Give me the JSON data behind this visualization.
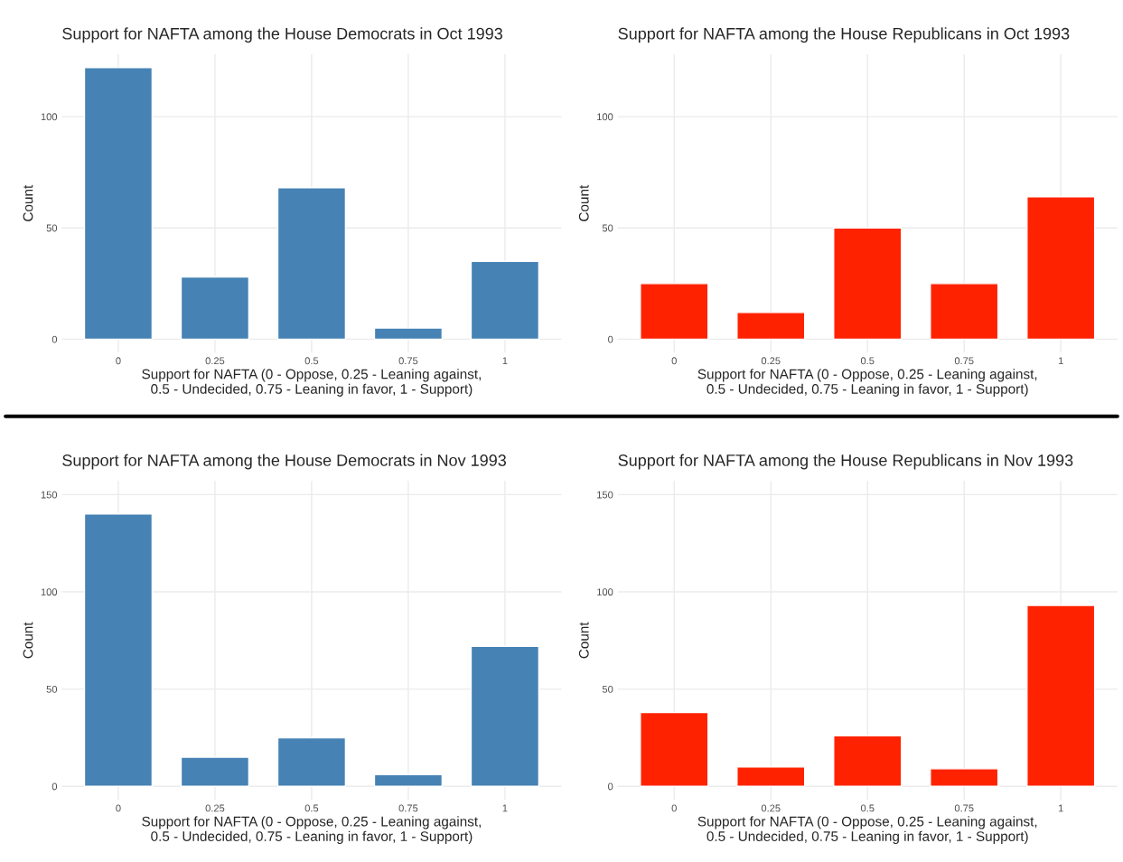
{
  "chart_data": [
    {
      "type": "bar",
      "title": "Support for NAFTA among the House Democrats in Oct 1993",
      "xlabel": "Support for NAFTA (0 - Oppose, 0.25 - Leaning against,\n0.5 - Undecided, 0.75 - Leaning in favor, 1 - Support)",
      "ylabel": "Count",
      "categories": [
        "0",
        "0.25",
        "0.5",
        "0.75",
        "1"
      ],
      "values": [
        122,
        28,
        68,
        5,
        35
      ],
      "color": "#4682b4",
      "ylim": [
        -6,
        128
      ],
      "yticks": [
        0,
        50,
        100
      ],
      "grid": true
    },
    {
      "type": "bar",
      "title": "Support for NAFTA among the House Republicans in Oct 1993",
      "xlabel": "Support for NAFTA (0 - Oppose, 0.25 - Leaning against,\n0.5 - Undecided, 0.75 - Leaning in favor, 1 - Support)",
      "ylabel": "Count",
      "categories": [
        "0",
        "0.25",
        "0.5",
        "0.75",
        "1"
      ],
      "values": [
        25,
        12,
        50,
        25,
        64
      ],
      "color": "#ff2200",
      "ylim": [
        -6,
        128
      ],
      "yticks": [
        0,
        50,
        100
      ],
      "grid": true
    },
    {
      "type": "bar",
      "title": "Support for NAFTA among the House Democrats in Nov 1993",
      "xlabel": "Support for NAFTA (0 - Oppose, 0.25 - Leaning against,\n0.5 - Undecided, 0.75 - Leaning in favor, 1 - Support)",
      "ylabel": "Count",
      "categories": [
        "0",
        "0.25",
        "0.5",
        "0.75",
        "1"
      ],
      "values": [
        140,
        15,
        25,
        6,
        72
      ],
      "color": "#4682b4",
      "ylim": [
        -7,
        157
      ],
      "yticks": [
        0,
        50,
        100,
        150
      ],
      "grid": true
    },
    {
      "type": "bar",
      "title": "Support for NAFTA among the House Republicans in Nov 1993",
      "xlabel": "Support for NAFTA (0 - Oppose, 0.25 - Leaning against,\n0.5 - Undecided, 0.75 - Leaning in favor, 1 - Support)",
      "ylabel": "Count",
      "categories": [
        "0",
        "0.25",
        "0.5",
        "0.75",
        "1"
      ],
      "values": [
        38,
        10,
        26,
        9,
        93
      ],
      "color": "#ff2200",
      "ylim": [
        -7,
        157
      ],
      "yticks": [
        0,
        50,
        100,
        150
      ],
      "grid": true
    }
  ]
}
